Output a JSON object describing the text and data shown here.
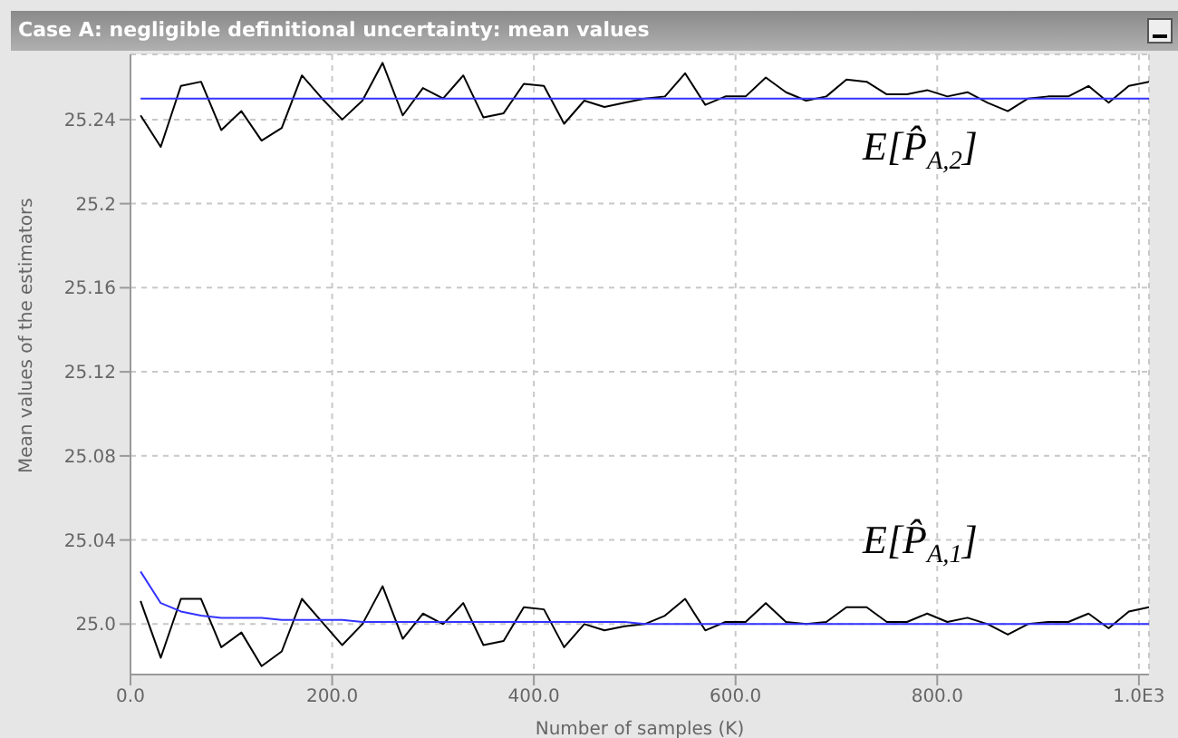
{
  "chart_data": {
    "type": "line",
    "title": "Case A: negligible definitional uncertainty: mean values",
    "xlabel": "Number of samples (K)",
    "ylabel": "Mean values of the estimators",
    "x": [
      10,
      30,
      50,
      70,
      90,
      110,
      130,
      150,
      170,
      190,
      210,
      230,
      250,
      270,
      290,
      310,
      330,
      350,
      370,
      390,
      410,
      430,
      450,
      470,
      490,
      510,
      530,
      550,
      570,
      590,
      610,
      630,
      650,
      670,
      690,
      710,
      730,
      750,
      770,
      790,
      810,
      830,
      850,
      870,
      890,
      910,
      930,
      950,
      970,
      990,
      1010
    ],
    "series": [
      {
        "color": "#000000",
        "values": [
          25.242,
          25.227,
          25.256,
          25.258,
          25.235,
          25.244,
          25.23,
          25.236,
          25.261,
          25.25,
          25.24,
          25.249,
          25.267,
          25.242,
          25.255,
          25.25,
          25.261,
          25.241,
          25.243,
          25.257,
          25.256,
          25.238,
          25.249,
          25.246,
          25.248,
          25.25,
          25.251,
          25.262,
          25.247,
          25.251,
          25.251,
          25.26,
          25.253,
          25.249,
          25.251,
          25.259,
          25.258,
          25.252,
          25.252,
          25.254,
          25.251,
          25.253,
          25.248,
          25.244,
          25.25,
          25.251,
          25.251,
          25.256,
          25.248,
          25.256,
          25.258
        ]
      },
      {
        "color": "#3333ff",
        "values": [
          25.25,
          25.25,
          25.25,
          25.25,
          25.25,
          25.25,
          25.25,
          25.25,
          25.25,
          25.25,
          25.25,
          25.25,
          25.25,
          25.25,
          25.25,
          25.25,
          25.25,
          25.25,
          25.25,
          25.25,
          25.25,
          25.25,
          25.25,
          25.25,
          25.25,
          25.25,
          25.25,
          25.25,
          25.25,
          25.25,
          25.25,
          25.25,
          25.25,
          25.25,
          25.25,
          25.25,
          25.25,
          25.25,
          25.25,
          25.25,
          25.25,
          25.25,
          25.25,
          25.25,
          25.25,
          25.25,
          25.25,
          25.25,
          25.25,
          25.25,
          25.25
        ]
      },
      {
        "color": "#000000",
        "values": [
          25.011,
          24.984,
          25.012,
          25.012,
          24.989,
          24.996,
          24.98,
          24.987,
          25.012,
          25.001,
          24.99,
          25.0,
          25.018,
          24.993,
          25.005,
          25.0,
          25.01,
          24.99,
          24.992,
          25.008,
          25.007,
          24.989,
          25.0,
          24.997,
          24.999,
          25.0,
          25.004,
          25.012,
          24.997,
          25.001,
          25.001,
          25.01,
          25.001,
          25.0,
          25.001,
          25.008,
          25.008,
          25.001,
          25.001,
          25.005,
          25.001,
          25.003,
          25.0,
          24.995,
          25.0,
          25.001,
          25.001,
          25.005,
          24.998,
          25.006,
          25.008
        ]
      },
      {
        "color": "#3333ff",
        "values": [
          25.025,
          25.01,
          25.006,
          25.004,
          25.003,
          25.003,
          25.003,
          25.002,
          25.002,
          25.002,
          25.002,
          25.001,
          25.001,
          25.001,
          25.001,
          25.001,
          25.001,
          25.001,
          25.001,
          25.001,
          25.001,
          25.001,
          25.001,
          25.001,
          25.001,
          25.0,
          25.0,
          25.0,
          25.0,
          25.0,
          25.0,
          25.0,
          25.0,
          25.0,
          25.0,
          25.0,
          25.0,
          25.0,
          25.0,
          25.0,
          25.0,
          25.0,
          25.0,
          25.0,
          25.0,
          25.0,
          25.0,
          25.0,
          25.0,
          25.0,
          25.0
        ]
      }
    ],
    "xlim": [
      0,
      1010
    ],
    "xticks": [
      {
        "value": 0,
        "label": "0.0"
      },
      {
        "value": 200,
        "label": "200.0"
      },
      {
        "value": 400,
        "label": "400.0"
      },
      {
        "value": 600,
        "label": "600.0"
      },
      {
        "value": 800,
        "label": "800.0"
      },
      {
        "value": 1000,
        "label": "1.0E3"
      }
    ],
    "ylim": [
      24.976,
      25.271
    ],
    "yticks": [
      {
        "value": 25,
        "label": "25.0"
      },
      25.04,
      25.08,
      25.12,
      25.16,
      25.2,
      25.24
    ],
    "grid": true,
    "marker": "none",
    "line_style": "solid",
    "annotations": [
      "E[P̂$_{A,2}$]",
      "E[P̂$_{A,1}$]"
    ]
  }
}
